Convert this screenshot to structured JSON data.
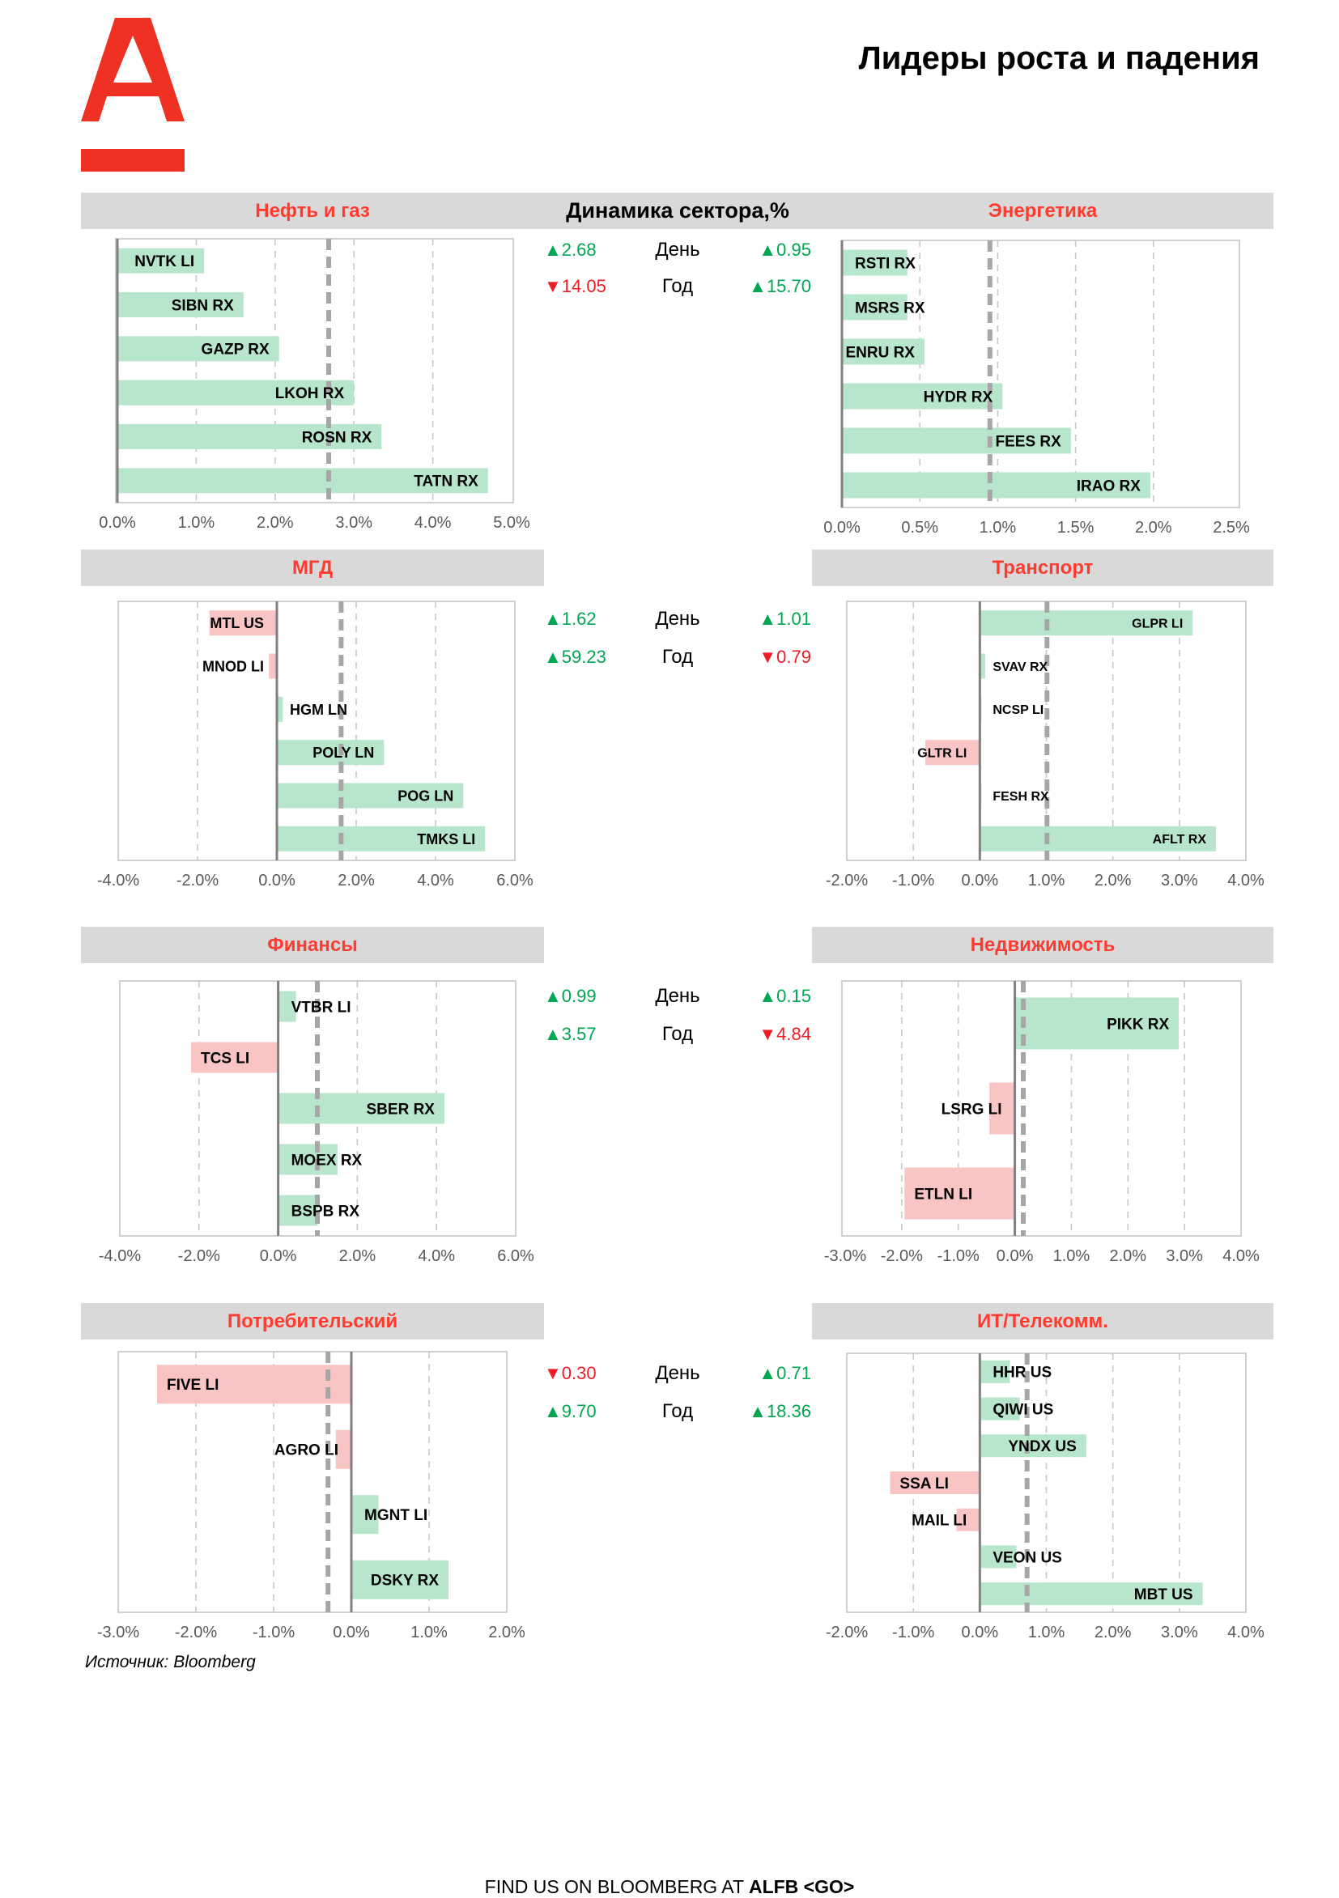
{
  "title": "Лидеры роста и падения",
  "dynamics_title": "Динамика сектора,%",
  "source": "Источник: Bloomberg",
  "footer": {
    "prefix": "FIND US ON BLOOMBERG AT ",
    "bold": "ALFB <GO>"
  },
  "colors": {
    "brand": "#ef3124",
    "positive_bar": "#b8e6cb",
    "negative_bar": "#f9c4c4",
    "up": "#00a651",
    "down": "#ee1c25",
    "band": "#d9d9d9"
  },
  "stats": [
    {
      "day_label": "День",
      "year_label": "Год",
      "left_day": {
        "arrow": "▲",
        "value": "2.68",
        "dir": "up"
      },
      "right_day": {
        "arrow": "▲",
        "value": "0.95",
        "dir": "up"
      },
      "left_year": {
        "arrow": "▼",
        "value": "14.05",
        "dir": "down"
      },
      "right_year": {
        "arrow": "▲",
        "value": "15.70",
        "dir": "up"
      }
    },
    {
      "day_label": "День",
      "year_label": "Год",
      "left_day": {
        "arrow": "▲",
        "value": "1.62",
        "dir": "up"
      },
      "right_day": {
        "arrow": "▲",
        "value": "1.01",
        "dir": "up"
      },
      "left_year": {
        "arrow": "▲",
        "value": "59.23",
        "dir": "up"
      },
      "right_year": {
        "arrow": "▼",
        "value": "0.79",
        "dir": "down"
      }
    },
    {
      "day_label": "День",
      "year_label": "Год",
      "left_day": {
        "arrow": "▲",
        "value": "0.99",
        "dir": "up"
      },
      "right_day": {
        "arrow": "▲",
        "value": "0.15",
        "dir": "up"
      },
      "left_year": {
        "arrow": "▲",
        "value": "3.57",
        "dir": "up"
      },
      "right_year": {
        "arrow": "▼",
        "value": "4.84",
        "dir": "down"
      }
    },
    {
      "day_label": "День",
      "year_label": "Год",
      "left_day": {
        "arrow": "▼",
        "value": "0.30",
        "dir": "down"
      },
      "right_day": {
        "arrow": "▲",
        "value": "0.71",
        "dir": "up"
      },
      "left_year": {
        "arrow": "▲",
        "value": "9.70",
        "dir": "up"
      },
      "right_year": {
        "arrow": "▲",
        "value": "18.36",
        "dir": "up"
      }
    }
  ],
  "chart_data": [
    {
      "type": "bar",
      "orientation": "horizontal",
      "title": "Нефть и газ",
      "categories": [
        "NVTK LI",
        "SIBN RX",
        "GAZP RX",
        "LKOH RX",
        "ROSN RX",
        "TATN RX"
      ],
      "values": [
        1.1,
        1.6,
        2.05,
        3.0,
        3.35,
        4.7
      ],
      "xlim": [
        0,
        5
      ],
      "xticks": [
        0,
        1,
        2,
        3,
        4,
        5
      ],
      "xtick_labels": [
        "0.0%",
        "1.0%",
        "2.0%",
        "3.0%",
        "4.0%",
        "5.0%"
      ],
      "reference_line": 2.68,
      "grid": true
    },
    {
      "type": "bar",
      "orientation": "horizontal",
      "title": "Энергетика",
      "categories": [
        "RSTI RX",
        "MSRS RX",
        "ENRU RX",
        "HYDR RX",
        "FEES RX",
        "IRAO RX"
      ],
      "values": [
        0.42,
        0.42,
        0.53,
        1.03,
        1.47,
        1.98
      ],
      "xlim": [
        0,
        2.5
      ],
      "xticks": [
        0,
        0.5,
        1,
        1.5,
        2,
        2.5
      ],
      "xtick_labels": [
        "0.0%",
        "0.5%",
        "1.0%",
        "1.5%",
        "2.0%",
        "2.5%"
      ],
      "reference_line": 0.95,
      "grid": true
    },
    {
      "type": "bar",
      "orientation": "horizontal",
      "title": "МГД",
      "categories": [
        "MTL US",
        "MNOD LI",
        "HGM LN",
        "POLY LN",
        "POG LN",
        "TMKS LI"
      ],
      "values": [
        -1.7,
        -0.2,
        0.15,
        2.7,
        4.7,
        5.25
      ],
      "xlim": [
        -4,
        6
      ],
      "xticks": [
        -4,
        -2,
        0,
        2,
        4,
        6
      ],
      "xtick_labels": [
        "-4.0%",
        "-2.0%",
        "0.0%",
        "2.0%",
        "4.0%",
        "6.0%"
      ],
      "reference_line": 1.62,
      "grid": true
    },
    {
      "type": "bar",
      "orientation": "horizontal",
      "title": "Транспорт",
      "categories": [
        "GLPR LI",
        "SVAV RX",
        "NCSP LI",
        "GLTR LI",
        "FESH RX",
        "AFLT RX"
      ],
      "values": [
        3.2,
        0.08,
        0.02,
        -0.82,
        0.02,
        3.55
      ],
      "xlim": [
        -2,
        4
      ],
      "xticks": [
        -2,
        -1,
        0,
        1,
        2,
        3,
        4
      ],
      "xtick_labels": [
        "-2.0%",
        "-1.0%",
        "0.0%",
        "1.0%",
        "2.0%",
        "3.0%",
        "4.0%"
      ],
      "reference_line": 1.01,
      "grid": true
    },
    {
      "type": "bar",
      "orientation": "horizontal",
      "title": "Финансы",
      "categories": [
        "VTBR LI",
        "TCS LI",
        "SBER RX",
        "MOEX RX",
        "BSPB RX"
      ],
      "values": [
        0.45,
        -2.2,
        4.2,
        1.5,
        1.0
      ],
      "xlim": [
        -4,
        6
      ],
      "xticks": [
        -4,
        -2,
        0,
        2,
        4,
        6
      ],
      "xtick_labels": [
        "-4.0%",
        "-2.0%",
        "0.0%",
        "2.0%",
        "4.0%",
        "6.0%"
      ],
      "reference_line": 0.99,
      "grid": true
    },
    {
      "type": "bar",
      "orientation": "horizontal",
      "title": "Недвижимость",
      "categories": [
        "PIKK RX",
        "LSRG LI",
        "ETLN LI"
      ],
      "values": [
        2.9,
        -0.45,
        -1.95
      ],
      "xlim": [
        -3,
        4
      ],
      "xticks": [
        -3,
        -2,
        -1,
        0,
        1,
        2,
        3,
        4
      ],
      "xtick_labels": [
        "-3.0%",
        "-2.0%",
        "-1.0%",
        "0.0%",
        "1.0%",
        "2.0%",
        "3.0%",
        "4.0%"
      ],
      "reference_line": 0.15,
      "grid": true
    },
    {
      "type": "bar",
      "orientation": "horizontal",
      "title": "Потребительский",
      "categories": [
        "FIVE LI",
        "AGRO LI",
        "MGNT LI",
        "DSKY RX"
      ],
      "values": [
        -2.5,
        -0.2,
        0.35,
        1.25
      ],
      "xlim": [
        -3,
        2
      ],
      "xticks": [
        -3,
        -2,
        -1,
        0,
        1,
        2
      ],
      "xtick_labels": [
        "-3.0%",
        "-2.0%",
        "-1.0%",
        "0.0%",
        "1.0%",
        "2.0%"
      ],
      "reference_line": -0.3,
      "grid": true
    },
    {
      "type": "bar",
      "orientation": "horizontal",
      "title": "ИТ/Телекомм.",
      "categories": [
        "HHR US",
        "QIWI US",
        "YNDX US",
        "SSA LI",
        "MAIL LI",
        "VEON US",
        "MBT US"
      ],
      "values": [
        0.45,
        0.6,
        1.6,
        -1.35,
        -0.35,
        0.55,
        3.35
      ],
      "xlim": [
        -2,
        4
      ],
      "xticks": [
        -2,
        -1,
        0,
        1,
        2,
        3,
        4
      ],
      "xtick_labels": [
        "-2.0%",
        "-1.0%",
        "0.0%",
        "1.0%",
        "2.0%",
        "3.0%",
        "4.0%"
      ],
      "reference_line": 0.71,
      "grid": true
    }
  ]
}
